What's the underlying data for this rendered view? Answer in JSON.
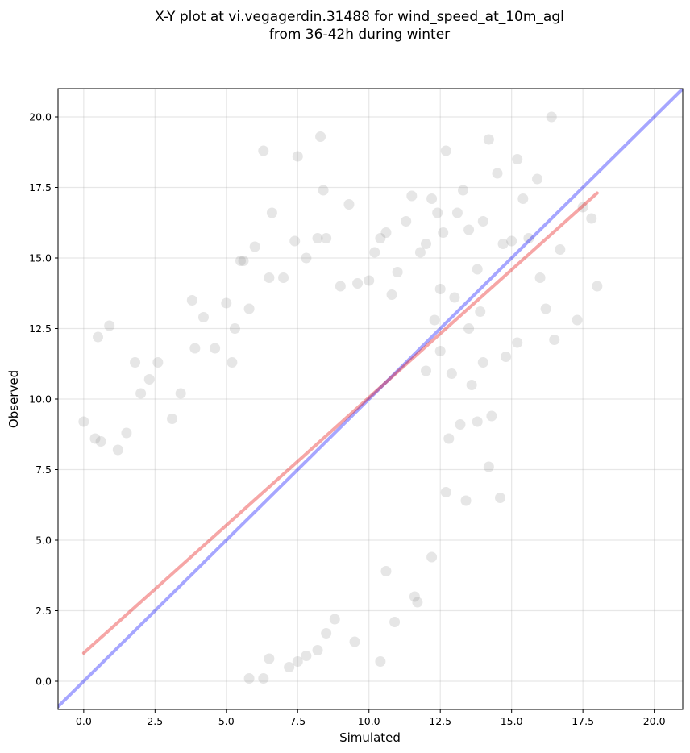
{
  "chart_data": {
    "type": "scatter",
    "title_lines": [
      "X-Y plot at vi.vegagerdin.31488 for wind_speed_at_10m_agl",
      "from 36-42h during winter"
    ],
    "xlabel": "Simulated",
    "ylabel": "Observed",
    "xlim": [
      -0.9,
      21.0
    ],
    "ylim": [
      -1.0,
      21.0
    ],
    "xticks": [
      0.0,
      2.5,
      5.0,
      7.5,
      10.0,
      12.5,
      15.0,
      17.5,
      20.0
    ],
    "yticks": [
      0.0,
      2.5,
      5.0,
      7.5,
      10.0,
      12.5,
      15.0,
      17.5,
      20.0
    ],
    "tick_labels": [
      "0.0",
      "2.5",
      "5.0",
      "7.5",
      "10.0",
      "12.5",
      "15.0",
      "17.5",
      "20.0"
    ],
    "grid": true,
    "colors": {
      "points": "#808080",
      "identity_line": "#0000ff",
      "fit_line": "#e50000"
    },
    "identity_line": {
      "x": [
        -0.9,
        21.0
      ],
      "y": [
        -0.9,
        21.0
      ]
    },
    "fit_line": {
      "x": [
        0.0,
        18.0
      ],
      "y": [
        1.0,
        17.3
      ]
    },
    "points": [
      [
        0.0,
        9.2
      ],
      [
        0.5,
        12.2
      ],
      [
        0.9,
        12.6
      ],
      [
        0.4,
        8.6
      ],
      [
        0.6,
        8.5
      ],
      [
        1.2,
        8.2
      ],
      [
        1.5,
        8.8
      ],
      [
        1.8,
        11.3
      ],
      [
        2.0,
        10.2
      ],
      [
        2.3,
        10.7
      ],
      [
        2.6,
        11.3
      ],
      [
        3.1,
        9.3
      ],
      [
        3.4,
        10.2
      ],
      [
        3.9,
        11.8
      ],
      [
        3.8,
        13.5
      ],
      [
        4.2,
        12.9
      ],
      [
        4.6,
        11.8
      ],
      [
        5.2,
        11.3
      ],
      [
        5.3,
        12.5
      ],
      [
        5.0,
        13.4
      ],
      [
        5.5,
        14.9
      ],
      [
        5.6,
        14.9
      ],
      [
        5.8,
        13.2
      ],
      [
        6.0,
        15.4
      ],
      [
        6.3,
        18.8
      ],
      [
        6.5,
        14.3
      ],
      [
        6.6,
        16.6
      ],
      [
        7.0,
        14.3
      ],
      [
        7.4,
        15.6
      ],
      [
        7.5,
        18.6
      ],
      [
        7.8,
        15.0
      ],
      [
        8.2,
        15.7
      ],
      [
        8.5,
        15.7
      ],
      [
        8.3,
        19.3
      ],
      [
        8.4,
        17.4
      ],
      [
        9.0,
        14.0
      ],
      [
        9.3,
        16.9
      ],
      [
        9.6,
        14.1
      ],
      [
        10.0,
        14.2
      ],
      [
        10.2,
        15.2
      ],
      [
        10.4,
        15.7
      ],
      [
        10.6,
        15.9
      ],
      [
        10.8,
        13.7
      ],
      [
        11.0,
        14.5
      ],
      [
        11.3,
        16.3
      ],
      [
        11.5,
        17.2
      ],
      [
        11.8,
        15.2
      ],
      [
        12.0,
        15.5
      ],
      [
        12.2,
        17.1
      ],
      [
        12.4,
        16.6
      ],
      [
        12.7,
        18.8
      ],
      [
        12.6,
        15.9
      ],
      [
        13.1,
        16.6
      ],
      [
        13.3,
        17.4
      ],
      [
        13.5,
        16.0
      ],
      [
        13.8,
        14.6
      ],
      [
        14.0,
        16.3
      ],
      [
        14.2,
        19.2
      ],
      [
        14.5,
        18.0
      ],
      [
        14.7,
        15.5
      ],
      [
        15.0,
        15.6
      ],
      [
        15.2,
        18.5
      ],
      [
        15.4,
        17.1
      ],
      [
        15.6,
        15.7
      ],
      [
        15.9,
        17.8
      ],
      [
        16.0,
        14.3
      ],
      [
        16.2,
        13.2
      ],
      [
        16.4,
        20.0
      ],
      [
        16.5,
        12.1
      ],
      [
        16.7,
        15.3
      ],
      [
        17.3,
        12.8
      ],
      [
        17.5,
        16.8
      ],
      [
        17.8,
        16.4
      ],
      [
        18.0,
        14.0
      ],
      [
        14.8,
        11.5
      ],
      [
        15.2,
        12.0
      ],
      [
        14.3,
        9.4
      ],
      [
        14.6,
        6.5
      ],
      [
        14.2,
        7.6
      ],
      [
        13.8,
        9.2
      ],
      [
        13.2,
        9.1
      ],
      [
        12.8,
        8.6
      ],
      [
        12.7,
        6.7
      ],
      [
        13.4,
        6.4
      ],
      [
        12.2,
        4.4
      ],
      [
        11.7,
        2.8
      ],
      [
        11.6,
        3.0
      ],
      [
        10.9,
        2.1
      ],
      [
        10.6,
        3.9
      ],
      [
        10.4,
        0.7
      ],
      [
        9.5,
        1.4
      ],
      [
        8.8,
        2.2
      ],
      [
        8.5,
        1.7
      ],
      [
        8.2,
        1.1
      ],
      [
        7.8,
        0.9
      ],
      [
        7.5,
        0.7
      ],
      [
        7.2,
        0.5
      ],
      [
        6.5,
        0.8
      ],
      [
        6.3,
        0.1
      ],
      [
        5.8,
        0.1
      ],
      [
        12.3,
        12.8
      ],
      [
        12.5,
        13.9
      ],
      [
        13.0,
        13.6
      ],
      [
        13.5,
        12.5
      ],
      [
        13.9,
        13.1
      ],
      [
        14.0,
        11.3
      ],
      [
        13.6,
        10.5
      ],
      [
        12.9,
        10.9
      ],
      [
        12.5,
        11.7
      ],
      [
        12.0,
        11.0
      ]
    ]
  }
}
